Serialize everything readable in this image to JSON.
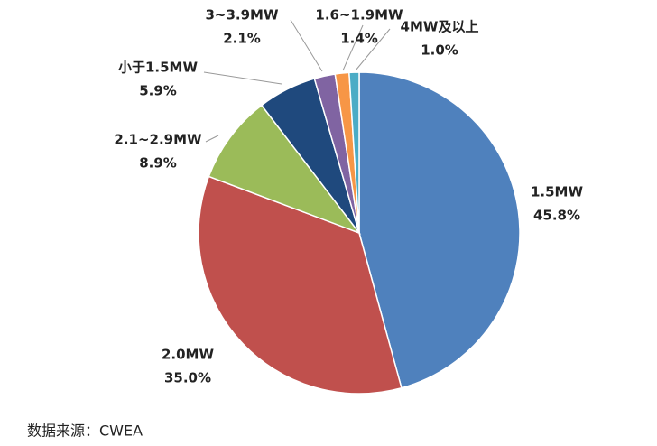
{
  "chart_data": {
    "type": "pie",
    "categories": [
      "1.5MW",
      "2.0MW",
      "2.1~2.9MW",
      "小于1.5MW",
      "3~3.9MW",
      "1.6~1.9MW",
      "4MW及以上"
    ],
    "values": [
      45.8,
      35.0,
      8.9,
      5.9,
      2.1,
      1.4,
      1.0
    ],
    "value_labels": [
      "45.8%",
      "35.0%",
      "8.9%",
      "5.9%",
      "2.1%",
      "1.4%",
      "1.0%"
    ],
    "colors": [
      "#4f81bd",
      "#c0504d",
      "#9bbb59",
      "#1f497d",
      "#8064a2",
      "#f79646",
      "#4bacc6"
    ],
    "source": "数据来源：CWEA"
  }
}
